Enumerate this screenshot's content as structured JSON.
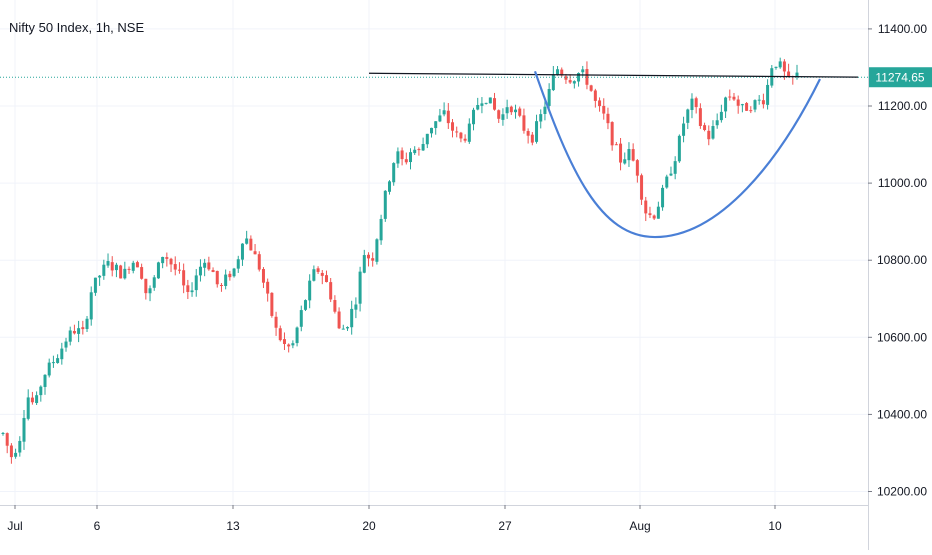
{
  "chart_data": {
    "type": "candlestick",
    "title": "Nifty 50 Index, 1h, NSE",
    "y_axis": {
      "ticks": [
        10200,
        10400,
        10600,
        10800,
        11000,
        11200,
        11400
      ],
      "tick_labels": [
        "10200.00",
        "10400.00",
        "10600.00",
        "10800.00",
        "11000.00",
        "11200.00",
        "11400.00"
      ],
      "ylim": [
        10165,
        11475
      ]
    },
    "x_axis": {
      "tick_labels": [
        "Jul",
        "6",
        "13",
        "20",
        "27",
        "Aug",
        "10"
      ]
    },
    "last_price": 11274.65,
    "last_price_label": "11274.65",
    "colors": {
      "up": "#26a69a",
      "down": "#ef5350",
      "last_price": "#26a69a",
      "pattern_cup": "#4a7fd6",
      "pattern_rim": "#131722",
      "grid": "#f0f3fa",
      "axis_text": "#131722"
    },
    "grid": true,
    "annotations": {
      "cup_and_handle": {
        "rim_line": {
          "from": 11285,
          "to": 11275
        },
        "cup_bottom": 10860
      }
    },
    "waypoints": [
      10350,
      10290,
      10330,
      10450,
      10420,
      10500,
      10530,
      10560,
      10600,
      10620,
      10610,
      10720,
      10760,
      10790,
      10780,
      10760,
      10800,
      10790,
      10700,
      10760,
      10820,
      10790,
      10760,
      10700,
      10760,
      10800,
      10780,
      10720,
      10760,
      10780,
      10870,
      10830,
      10780,
      10700,
      10620,
      10580,
      10570,
      10650,
      10720,
      10780,
      10760,
      10700,
      10610,
      10640,
      10700,
      10820,
      10800,
      10900,
      11000,
      11080,
      11050,
      11090,
      11080,
      11140,
      11160,
      11180,
      11140,
      11110,
      11130,
      11200,
      11230,
      11200,
      11160,
      11210,
      11180,
      11140,
      11120,
      11170,
      11230,
      11300,
      11280,
      11270,
      11290,
      11260,
      11200,
      11170,
      11110,
      11060,
      11080,
      11040,
      10930,
      10910,
      10960,
      11020,
      11080,
      11170,
      11210,
      11150,
      11120,
      11160,
      11220,
      11230,
      11190,
      11200,
      11210,
      11220,
      11320,
      11300,
      11260,
      11280
    ]
  }
}
